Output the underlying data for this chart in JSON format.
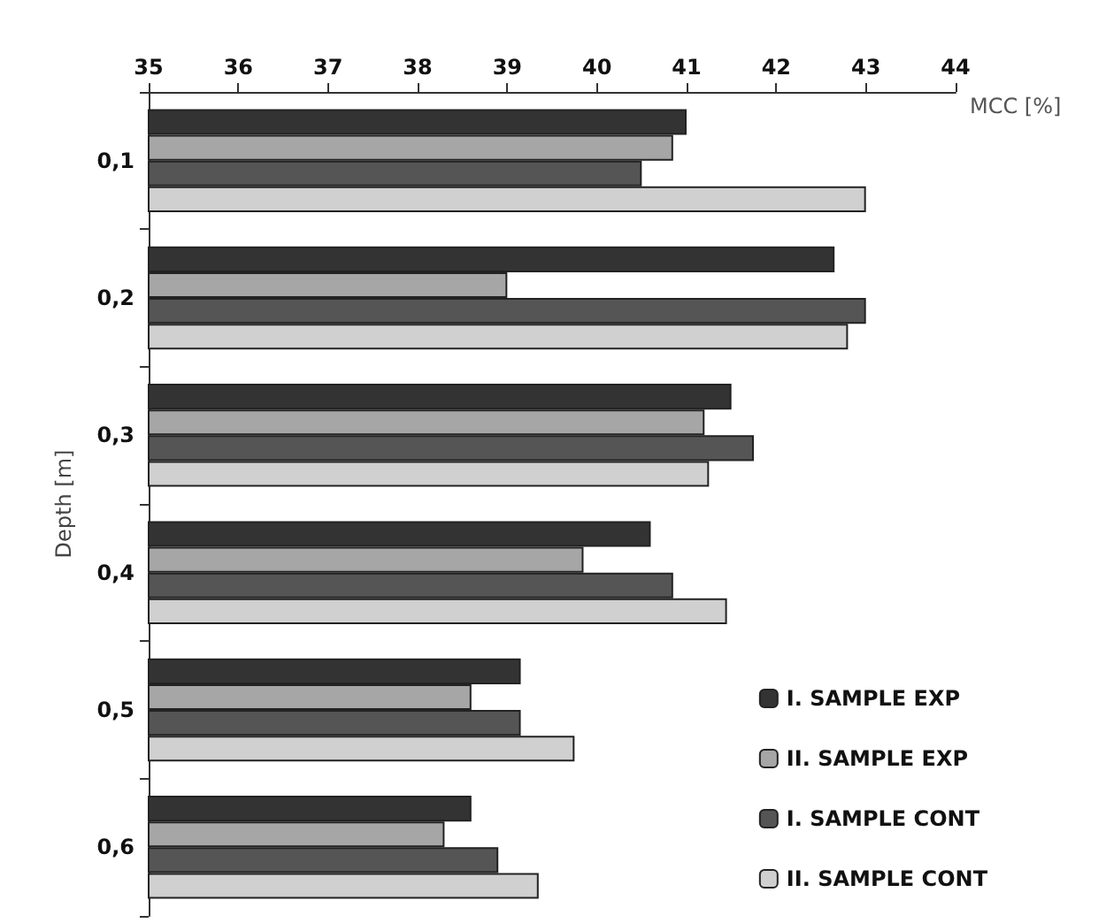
{
  "chart_data": {
    "type": "bar",
    "orientation": "horizontal",
    "xlabel": "MCC [%]",
    "ylabel": "Depth [m]",
    "categories": [
      "0,1",
      "0,2",
      "0,3",
      "0,4",
      "0,5",
      "0,6"
    ],
    "xlim": [
      35,
      44
    ],
    "xticks": [
      35,
      36,
      37,
      38,
      39,
      40,
      41,
      42,
      43,
      44
    ],
    "grid": false,
    "legend": "bottom right",
    "series": [
      {
        "name": "I. SAMPLE EXP",
        "color": "#333333",
        "values": [
          41.0,
          42.65,
          41.5,
          40.6,
          39.15,
          38.6
        ]
      },
      {
        "name": "II. SAMPLE EXP",
        "color": "#a6a6a6",
        "values": [
          40.85,
          39.0,
          41.2,
          39.85,
          38.6,
          38.3
        ]
      },
      {
        "name": "I. SAMPLE CONT",
        "color": "#555555",
        "values": [
          40.5,
          43.0,
          41.75,
          40.85,
          39.15,
          38.9
        ]
      },
      {
        "name": "II. SAMPLE CONT",
        "color": "#d0d0d0",
        "values": [
          43.0,
          42.8,
          41.25,
          41.45,
          39.75,
          39.35
        ]
      }
    ]
  }
}
